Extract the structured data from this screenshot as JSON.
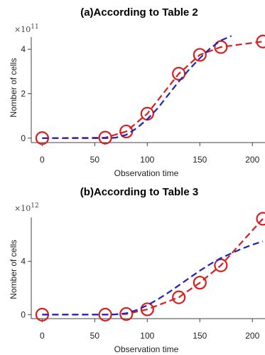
{
  "chart_data": [
    {
      "type": "line",
      "title": "(a)According to Table 2",
      "xlabel": "Observation time",
      "ylabel": "Nomber of cells",
      "y_scale_label": "×10",
      "y_scale_exponent": "11",
      "xlim": [
        -5,
        212
      ],
      "ylim": [
        -0.2,
        4.55
      ],
      "x_ticks": [
        0,
        50,
        100,
        150,
        200
      ],
      "y_ticks": [
        0,
        2,
        4
      ],
      "series": [
        {
          "style": "dashed-markers",
          "color": "#d62020",
          "x": [
            0,
            60,
            80,
            100,
            130,
            150,
            170,
            210
          ],
          "y": [
            0.0,
            0.02,
            0.3,
            1.1,
            2.9,
            3.75,
            4.1,
            4.35
          ]
        },
        {
          "style": "dashed",
          "color": "#2222bb",
          "x": [
            0,
            20,
            40,
            60,
            70,
            80,
            90,
            100,
            110,
            120,
            130,
            140,
            150,
            160,
            170,
            180
          ],
          "y": [
            0.0,
            0.0,
            0.0,
            0.0,
            0.02,
            0.15,
            0.45,
            0.85,
            1.35,
            1.95,
            2.55,
            3.1,
            3.6,
            4.05,
            4.4,
            4.6
          ]
        }
      ]
    },
    {
      "type": "line",
      "title": "(b)According to Table 3",
      "xlabel": "Observation time",
      "ylabel": "Nomber of cells",
      "y_scale_label": "×10",
      "y_scale_exponent": "12",
      "xlim": [
        -5,
        212
      ],
      "ylim": [
        -0.3,
        7.3
      ],
      "x_ticks": [
        0,
        50,
        100,
        150,
        200
      ],
      "y_ticks": [
        0,
        4
      ],
      "series": [
        {
          "style": "dashed-markers",
          "color": "#d62020",
          "x": [
            0,
            60,
            80,
            100,
            130,
            150,
            170,
            210
          ],
          "y": [
            0.0,
            0.0,
            0.05,
            0.4,
            1.3,
            2.4,
            3.7,
            7.2
          ]
        },
        {
          "style": "dashed",
          "color": "#2222bb",
          "x": [
            0,
            20,
            40,
            60,
            70,
            80,
            90,
            100,
            110,
            120,
            130,
            140,
            150,
            160,
            170,
            180,
            190,
            200,
            210
          ],
          "y": [
            0.0,
            0.0,
            0.0,
            0.0,
            0.02,
            0.1,
            0.35,
            0.7,
            1.15,
            1.65,
            2.2,
            2.75,
            3.3,
            3.8,
            4.25,
            4.6,
            4.95,
            5.25,
            5.5
          ]
        }
      ]
    }
  ]
}
